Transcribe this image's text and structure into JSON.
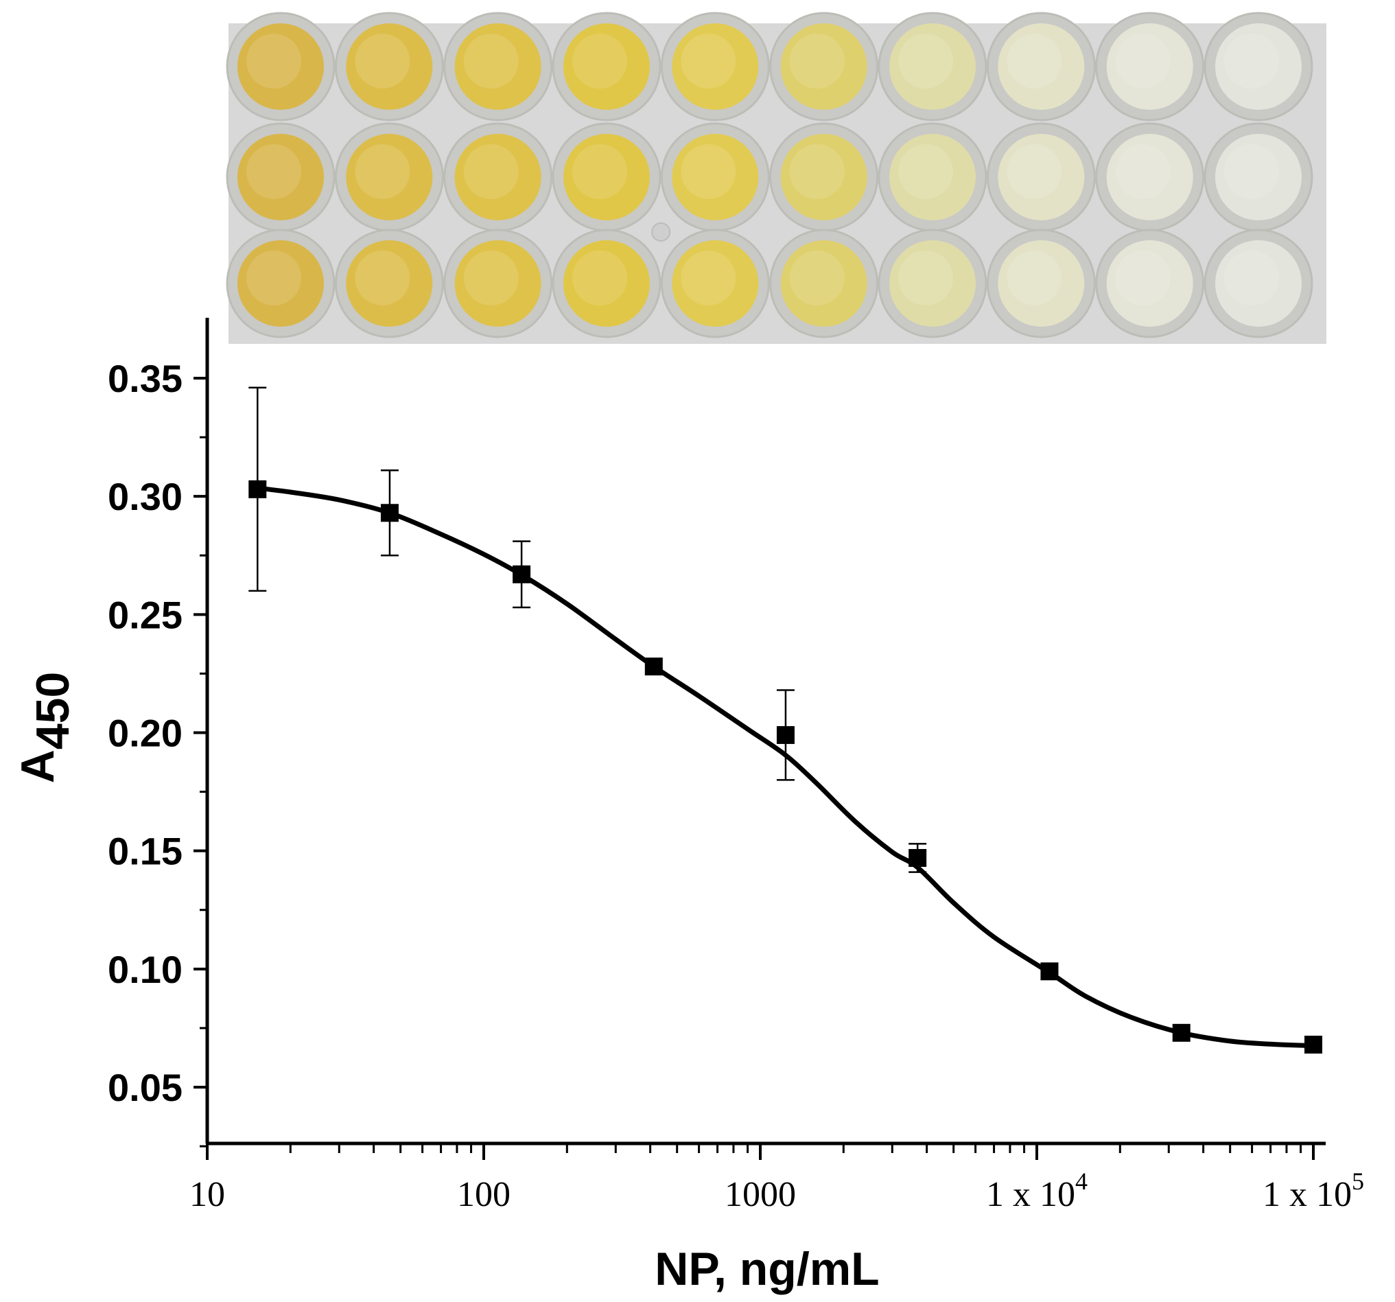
{
  "chart_data": {
    "type": "scatter",
    "title": "",
    "xlabel": "NP, ng/mL",
    "ylabel": {
      "main": "A",
      "subscript": "450"
    },
    "xscale": "log",
    "xlim": [
      10,
      100000
    ],
    "ylim": [
      0.025,
      0.37
    ],
    "xticks": [
      {
        "value": 10,
        "label": "10"
      },
      {
        "value": 100,
        "label": "100"
      },
      {
        "value": 1000,
        "label": "1000"
      },
      {
        "value": 10000,
        "label": "1 x 10",
        "exp": "4"
      },
      {
        "value": 100000,
        "label": "1 x 10",
        "exp": "5"
      }
    ],
    "yticks": [
      {
        "value": 0.05,
        "label": "0.05"
      },
      {
        "value": 0.1,
        "label": "0.10"
      },
      {
        "value": 0.15,
        "label": "0.15"
      },
      {
        "value": 0.2,
        "label": "0.20"
      },
      {
        "value": 0.25,
        "label": "0.25"
      },
      {
        "value": 0.3,
        "label": "0.30"
      },
      {
        "value": 0.35,
        "label": "0.35"
      }
    ],
    "series": [
      {
        "name": "NP",
        "marker": "square",
        "x": [
          15.2,
          45.7,
          137,
          412,
          1235,
          3704,
          11111,
          33333,
          100000
        ],
        "y": [
          0.303,
          0.293,
          0.267,
          0.228,
          0.199,
          0.147,
          0.099,
          0.073,
          0.068
        ],
        "yerr": [
          0.043,
          0.018,
          0.014,
          0.001,
          0.019,
          0.006,
          0.001,
          0.001,
          0.001
        ]
      }
    ],
    "fit": {
      "type": "sigmoidal",
      "x": [
        15.2,
        20,
        30,
        45.7,
        70,
        100,
        137,
        200,
        300,
        412,
        600,
        900,
        1235,
        1600,
        2200,
        3000,
        3704,
        5000,
        7000,
        11111,
        15000,
        22000,
        33333,
        50000,
        70000,
        100000
      ],
      "y": [
        0.3035,
        0.3018,
        0.2985,
        0.293,
        0.284,
        0.2755,
        0.2668,
        0.2545,
        0.2395,
        0.228,
        0.2155,
        0.2015,
        0.1905,
        0.1785,
        0.1625,
        0.1495,
        0.143,
        0.128,
        0.1135,
        0.0985,
        0.0885,
        0.0795,
        0.073,
        0.0695,
        0.0682,
        0.0675
      ]
    },
    "grid": false,
    "legend": "none"
  },
  "plate": {
    "rows": 3,
    "well_colors": [
      "#d9b64a",
      "#dcbd4a",
      "#dfc24a",
      "#e1c748",
      "#e2cb52",
      "#dfd06e",
      "#e0dca8",
      "#e3e2c6",
      "#e4e5d6",
      "#e3e5dc"
    ],
    "background_color": "#d8d8d8",
    "missing": [
      [
        2,
        4
      ]
    ]
  },
  "colors": {
    "ink": "#000000",
    "background": "#ffffff"
  }
}
